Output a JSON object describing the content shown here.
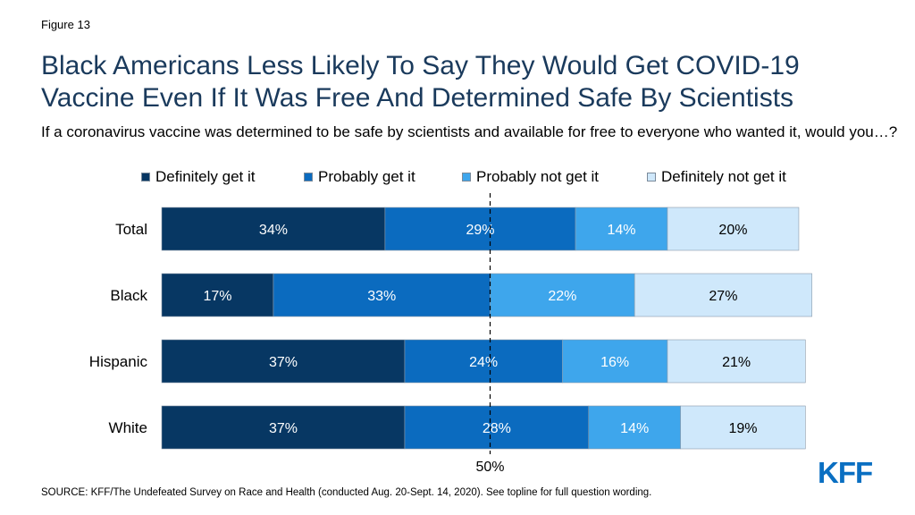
{
  "figure_label": "Figure 13",
  "title": "Black Americans Less Likely To Say They Would Get COVID-19 Vaccine Even If It Was Free And Determined Safe By Scientists",
  "subtitle": "If a coronavirus vaccine was determined to be safe by scientists and available for free to everyone who wanted it, would you…?",
  "source": "SOURCE: KFF/The Undefeated Survey on Race and Health (conducted Aug. 20-Sept. 14, 2020). See topline for full question wording.",
  "logo_text": "KFF",
  "chart_data": {
    "type": "bar",
    "orientation": "horizontal",
    "stacked": true,
    "categories": [
      "Total",
      "Black",
      "Hispanic",
      "White"
    ],
    "series": [
      {
        "name": "Definitely get it",
        "color": "#073763",
        "values": [
          34,
          17,
          37,
          37
        ]
      },
      {
        "name": "Probably get it",
        "color": "#0b6bbf",
        "values": [
          29,
          33,
          24,
          28
        ]
      },
      {
        "name": "Probably not get it",
        "color": "#3ea6ec",
        "values": [
          14,
          22,
          16,
          14
        ]
      },
      {
        "name": "Definitely not get it",
        "color": "#cfe8fb",
        "values": [
          20,
          27,
          21,
          19
        ]
      }
    ],
    "value_suffix": "%",
    "reference_line": {
      "value": 50,
      "label": "50%"
    },
    "legend_position": "top",
    "xlim": [
      0,
      100
    ],
    "grid": false
  }
}
